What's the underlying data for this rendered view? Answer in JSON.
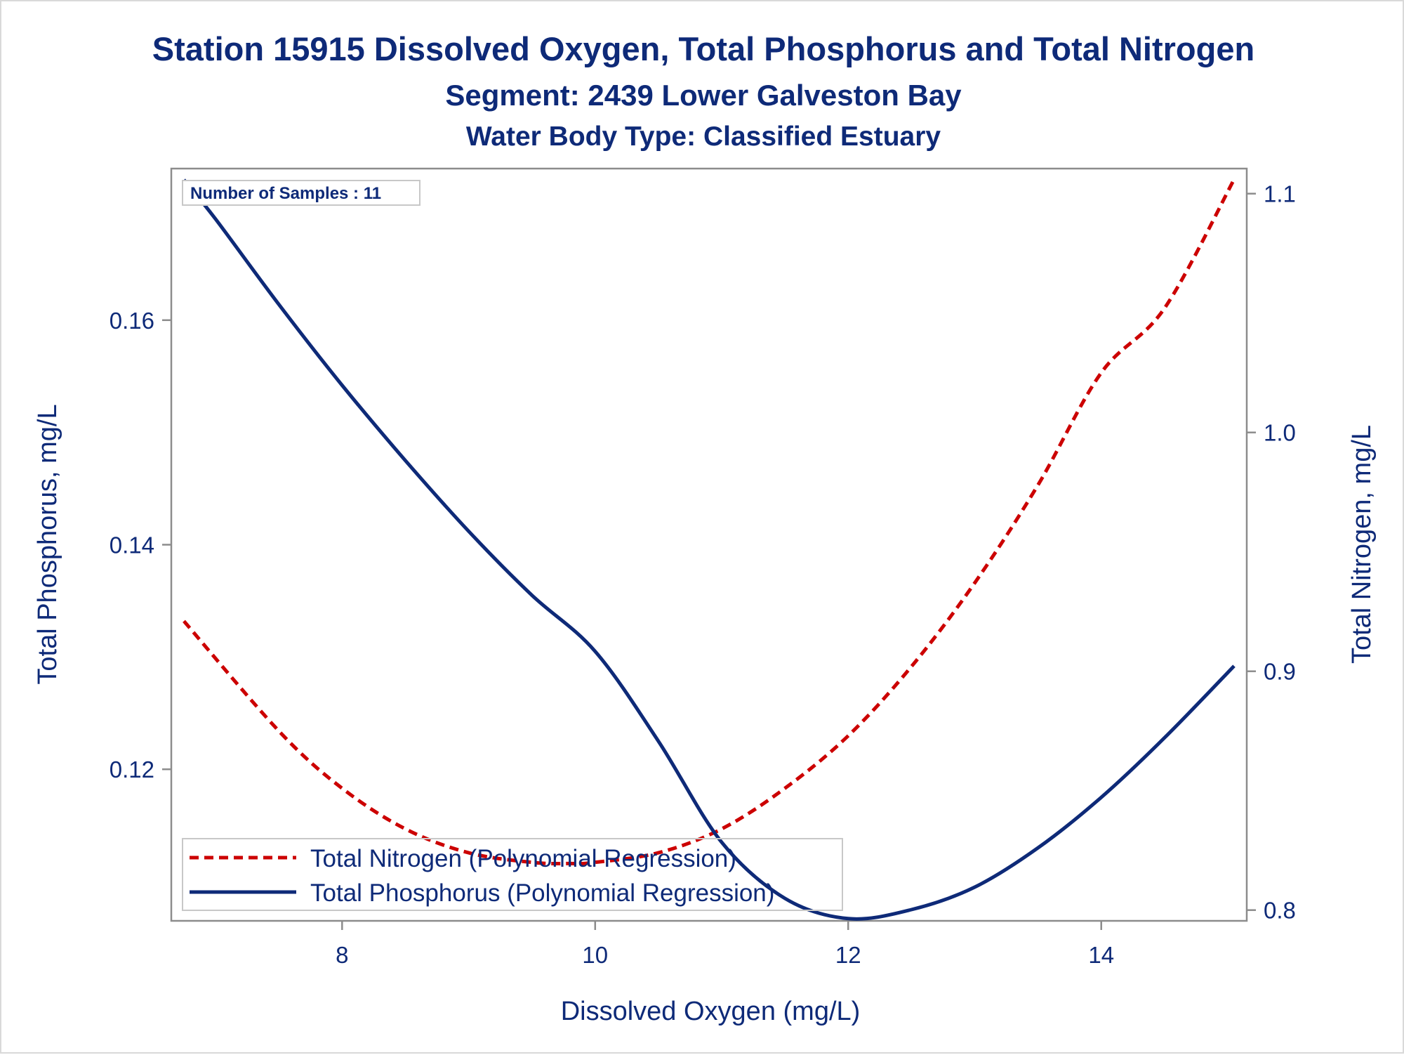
{
  "chart_data": {
    "type": "line",
    "title": "Station 15915  Dissolved Oxygen, Total Phosphorus and Total Nitrogen",
    "subtitle": "Segment: 2439  Lower Galveston Bay",
    "subtitle2": "Water Body Type: Classified Estuary",
    "xlabel": "Dissolved Oxygen (mg/L)",
    "ylabel_left": "Total Phosphorus, mg/L",
    "ylabel_right": "Total Nitrogen, mg/L",
    "x_ticks": [
      "8",
      "10",
      "12",
      "14"
    ],
    "y_left_ticks": [
      "0.12",
      "0.14",
      "0.16"
    ],
    "y_right_ticks": [
      "0.8",
      "0.9",
      "1.0",
      "1.1"
    ],
    "xlim": [
      6.65,
      15.15
    ],
    "ylim_left": [
      0.1065,
      0.1735
    ],
    "ylim_right": [
      0.7955,
      1.1105
    ],
    "annotation": "Number of Samples : 11",
    "legend_position": "bottom-left",
    "grid": false,
    "series": [
      {
        "name": "Total Nitrogen (Polynomial Regression)",
        "axis": "right",
        "style": "dashed",
        "color": "#cc0000",
        "x": [
          6.75,
          7.5,
          8.0,
          8.5,
          9.0,
          9.5,
          9.8,
          10.0,
          10.5,
          11.0,
          11.5,
          12.0,
          12.5,
          13.0,
          13.5,
          14.0,
          14.5,
          15.05
        ],
        "y": [
          0.921,
          0.875,
          0.851,
          0.834,
          0.824,
          0.82,
          0.8195,
          0.82,
          0.824,
          0.834,
          0.851,
          0.873,
          0.902,
          0.937,
          0.978,
          1.025,
          1.052,
          1.106
        ]
      },
      {
        "name": "Total Phosphorus (Polynomial Regression)",
        "axis": "left",
        "style": "solid",
        "color": "#0e2a78",
        "x": [
          6.75,
          7.0,
          7.5,
          8.0,
          8.5,
          9.0,
          9.5,
          10.0,
          10.5,
          11.0,
          11.5,
          12.0,
          12.5,
          13.0,
          13.5,
          14.0,
          14.5,
          15.05
        ],
        "y": [
          0.1725,
          0.169,
          0.1614,
          0.1542,
          0.1475,
          0.1412,
          0.1355,
          0.1305,
          0.1225,
          0.1135,
          0.1085,
          0.1067,
          0.1075,
          0.1095,
          0.113,
          0.1175,
          0.1228,
          0.1292
        ]
      }
    ]
  },
  "colors": {
    "text": "#0e2a78",
    "nitrogen": "#cc0000",
    "phosphorus": "#0e2a78",
    "frame": "#8c8c8c"
  }
}
